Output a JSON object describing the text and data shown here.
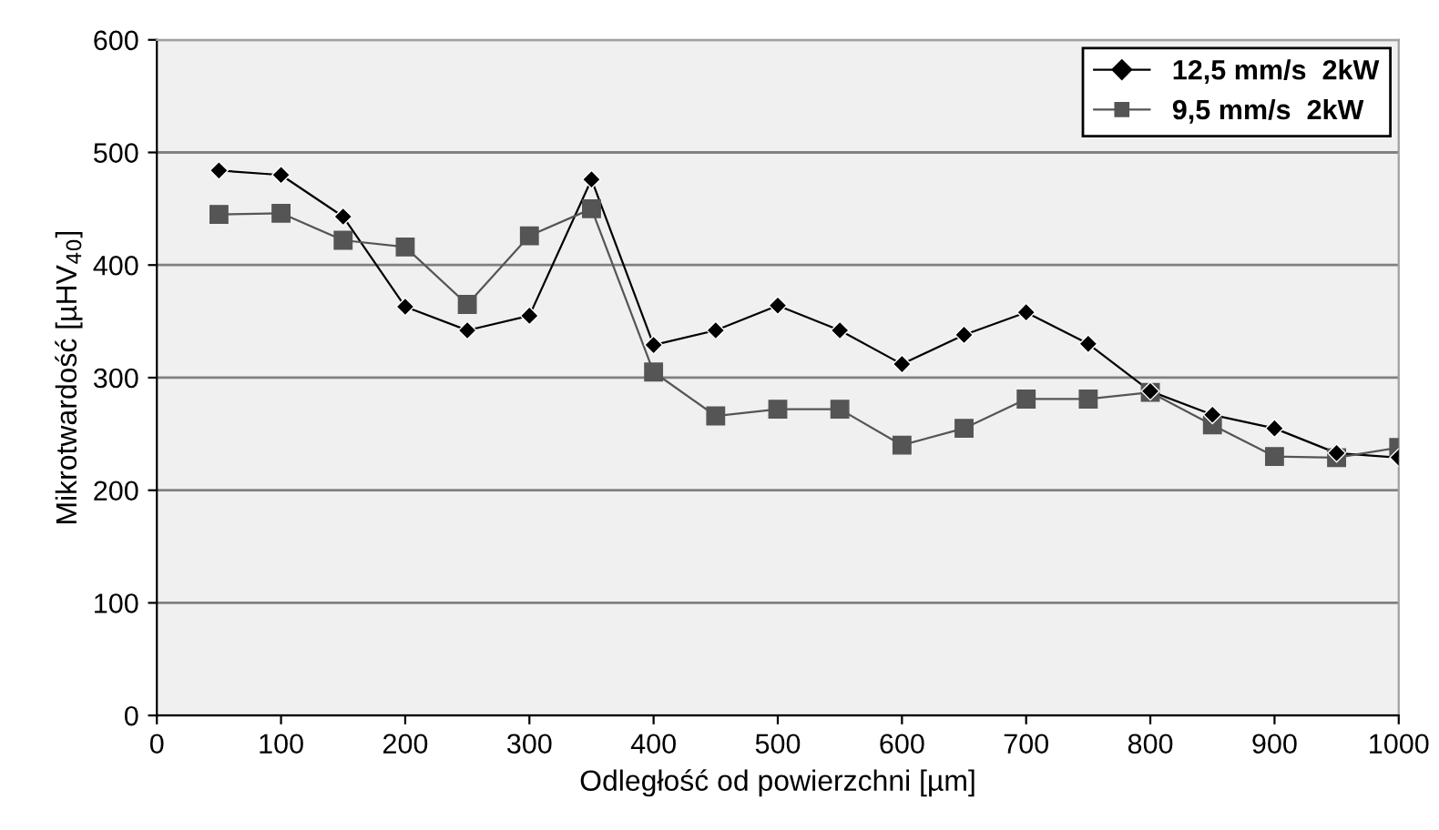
{
  "chart_data": {
    "type": "line",
    "xlabel": "Odległość od powierzchni [µm]",
    "ylabel": "Mikrotwardość [µHV$_{40}$]",
    "x": [
      50,
      100,
      150,
      200,
      250,
      300,
      350,
      400,
      450,
      500,
      550,
      600,
      650,
      700,
      750,
      800,
      850,
      900,
      950,
      1000
    ],
    "series": [
      {
        "name": "12,5 mm/s  2kW",
        "color": "#000000",
        "marker": "diamond",
        "values": [
          484,
          480,
          443,
          363,
          342,
          355,
          476,
          329,
          342,
          364,
          342,
          312,
          338,
          358,
          330,
          288,
          267,
          255,
          233,
          229
        ]
      },
      {
        "name": "9,5 mm/s  2kW",
        "color": "#555555",
        "marker": "square",
        "values": [
          445,
          446,
          422,
          416,
          365,
          426,
          450,
          305,
          266,
          272,
          272,
          240,
          255,
          281,
          281,
          287,
          258,
          230,
          229,
          238
        ]
      }
    ],
    "xlim": [
      0,
      1000
    ],
    "xticks": [
      0,
      100,
      200,
      300,
      400,
      500,
      600,
      700,
      800,
      900,
      1000
    ],
    "ylim": [
      0,
      600
    ],
    "yticks": [
      0,
      100,
      200,
      300,
      400,
      500,
      600
    ],
    "grid": "y",
    "legend": "top right",
    "line_style": "solid"
  }
}
